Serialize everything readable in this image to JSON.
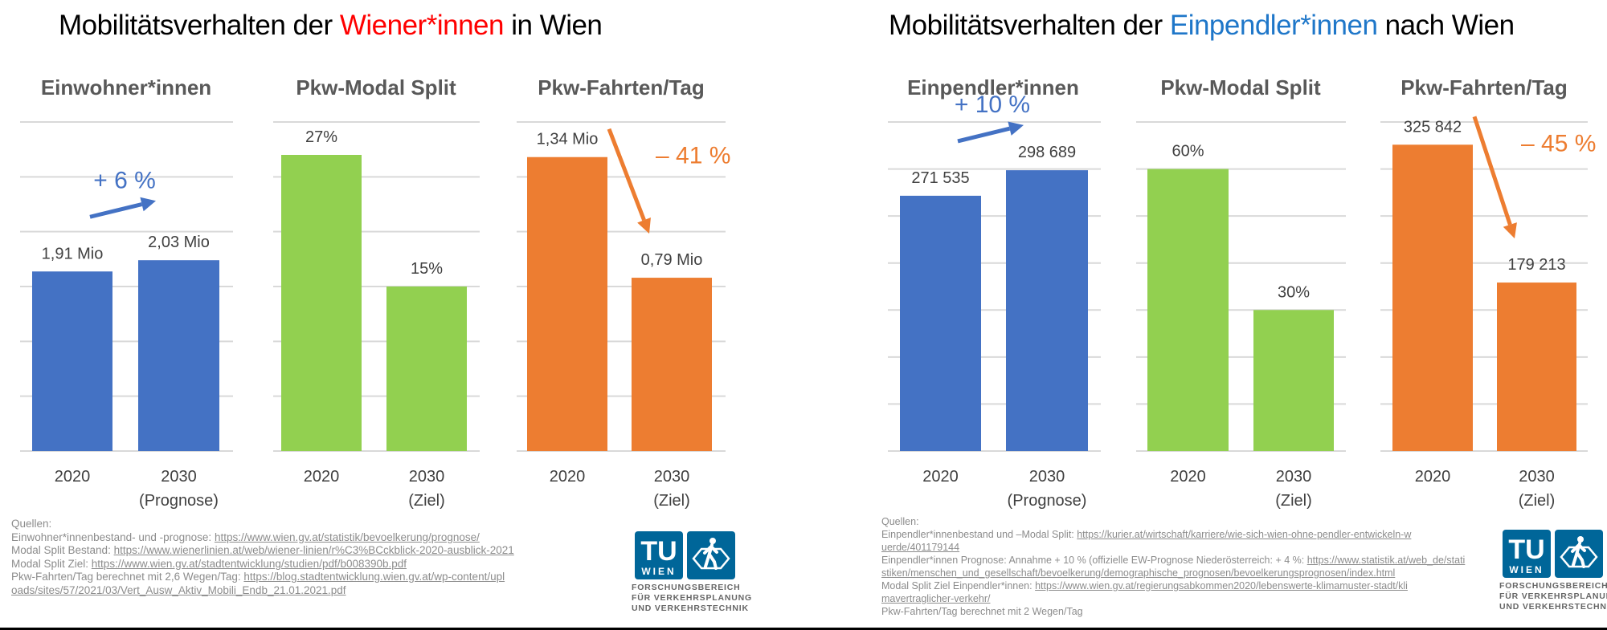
{
  "panels": [
    {
      "title_pre": "Mobilitätsverhalten der ",
      "title_highlight": "Wiener*innen",
      "title_post": " in Wien",
      "highlight_color": "#ff0000"
    },
    {
      "title_pre": "Mobilitätsverhalten der ",
      "title_highlight": "Einpendler*innen",
      "title_post": " nach Wien",
      "highlight_color": "#1f77c9"
    }
  ],
  "chart_data": [
    {
      "type": "bar",
      "panel": 0,
      "title": "Einwohner*innen",
      "categories": [
        "2020",
        "2030 (Prognose)"
      ],
      "category_lines": [
        [
          "2020"
        ],
        [
          "2030",
          "(Prognose)"
        ]
      ],
      "values": [
        1.91,
        2.03
      ],
      "unit": "Mio",
      "labels": [
        "1,91 Mio",
        "2,03 Mio"
      ],
      "color": "#4472c4",
      "ylim": [
        0,
        3.5
      ],
      "gridlines": 7,
      "change": {
        "text": "+ 6 %",
        "direction": "up",
        "color": "#4472c4"
      },
      "xlabel": "",
      "ylabel": ""
    },
    {
      "type": "bar",
      "panel": 0,
      "title": "Pkw-Modal Split",
      "categories": [
        "2020",
        "2030 (Ziel)"
      ],
      "category_lines": [
        [
          "2020"
        ],
        [
          "2030",
          "(Ziel)"
        ]
      ],
      "values": [
        27,
        15
      ],
      "unit": "%",
      "labels": [
        "27%",
        "15%"
      ],
      "color": "#92d050",
      "ylim": [
        0,
        30
      ],
      "gridlines": 7,
      "xlabel": "",
      "ylabel": ""
    },
    {
      "type": "bar",
      "panel": 0,
      "title": "Pkw-Fahrten/Tag",
      "categories": [
        "2020",
        "2030 (Ziel)"
      ],
      "category_lines": [
        [
          "2020"
        ],
        [
          "2030",
          "(Ziel)"
        ]
      ],
      "values": [
        1.34,
        0.79
      ],
      "unit": "Mio",
      "labels": [
        "1,34 Mio",
        "0,79 Mio"
      ],
      "color": "#ed7d31",
      "ylim": [
        0,
        1.5
      ],
      "gridlines": 7,
      "change": {
        "text": "– 41 %",
        "direction": "down",
        "color": "#ed7d31"
      },
      "xlabel": "",
      "ylabel": ""
    },
    {
      "type": "bar",
      "panel": 1,
      "title": "Einpendler*innen",
      "categories": [
        "2020",
        "2030 (Prognose)"
      ],
      "category_lines": [
        [
          "2020"
        ],
        [
          "2030",
          "(Prognose)"
        ]
      ],
      "values": [
        271535,
        298689
      ],
      "unit": "",
      "labels": [
        "271 535",
        "298 689"
      ],
      "color": "#4472c4",
      "ylim": [
        0,
        350000
      ],
      "gridlines": 8,
      "change": {
        "text": "+ 10 %",
        "direction": "up",
        "color": "#4472c4"
      },
      "xlabel": "",
      "ylabel": ""
    },
    {
      "type": "bar",
      "panel": 1,
      "title": "Pkw-Modal Split",
      "categories": [
        "2020",
        "2030 (Ziel)"
      ],
      "category_lines": [
        [
          "2020"
        ],
        [
          "2030",
          "(Ziel)"
        ]
      ],
      "values": [
        60,
        30
      ],
      "unit": "%",
      "labels": [
        "60%",
        "30%"
      ],
      "color": "#92d050",
      "ylim": [
        0,
        70
      ],
      "gridlines": 8,
      "xlabel": "",
      "ylabel": ""
    },
    {
      "type": "bar",
      "panel": 1,
      "title": "Pkw-Fahrten/Tag",
      "categories": [
        "2020",
        "2030 (Ziel)"
      ],
      "category_lines": [
        [
          "2020"
        ],
        [
          "2030",
          "(Ziel)"
        ]
      ],
      "values": [
        325842,
        179213
      ],
      "unit": "",
      "labels": [
        "325 842",
        "179 213"
      ],
      "color": "#ed7d31",
      "ylim": [
        0,
        350000
      ],
      "gridlines": 8,
      "change": {
        "text": "– 45 %",
        "direction": "down",
        "color": "#ed7d31"
      },
      "xlabel": "",
      "ylabel": ""
    }
  ],
  "sources_left": {
    "heading": "Quellen:",
    "lines": [
      {
        "prefix": "Einwohner*innenbestand- und -prognose: ",
        "link": "https://www.wien.gv.at/statistik/bevoelkerung/prognose/"
      },
      {
        "prefix": "Modal Split Bestand: ",
        "link": "https://www.wienerlinien.at/web/wiener-linien/r%C3%BCckblick-2020-ausblick-2021"
      },
      {
        "prefix": "Modal Split Ziel: ",
        "link": "https://www.wien.gv.at/stadtentwicklung/studien/pdf/b008390b.pdf"
      },
      {
        "prefix": "Pkw-Fahrten/Tag berechnet mit 2,6 Wegen/Tag: ",
        "link": "https://blog.stadtentwicklung.wien.gv.at/wp-content/uploads/sites/57/2021/03/Vert_Ausw_Aktiv_Mobili_Endb_21.01.2021.pdf"
      }
    ]
  },
  "sources_right": {
    "heading": "Quellen:",
    "lines": [
      {
        "prefix": "Einpendler*innenbestand und –Modal Split: ",
        "link": "https://kurier.at/wirtschaft/karriere/wie-sich-wien-ohne-pendler-entwickeln-wuerde/401179144"
      },
      {
        "prefix": "Einpendler*innen Prognose: Annahme + 10 % (offizielle EW-Prognose Niederösterreich: + 4 %: ",
        "link": "https://www.statistik.at/web_de/statistiken/menschen_und_gesellschaft/bevoelkerung/demographische_prognosen/bevoelkerungsprognosen/index.html"
      },
      {
        "prefix": "Modal Split Ziel Einpendler*innen: ",
        "link": "https://www.wien.gv.at/regierungsabkommen2020/lebenswerte-klimamuster-stadt/klimavertraglicher-verkehr/"
      },
      {
        "prefix": "Pkw-Fahrten/Tag berechnet mit 2 Wegen/Tag",
        "link": ""
      }
    ]
  },
  "logo": {
    "tu": "TU",
    "wien": "WIEN",
    "caption": [
      "FORSCHUNGSBEREICH",
      "FÜR VERKEHRSPLANUNG",
      "UND VERKEHRSTECHNIK"
    ],
    "color": "#006699"
  }
}
